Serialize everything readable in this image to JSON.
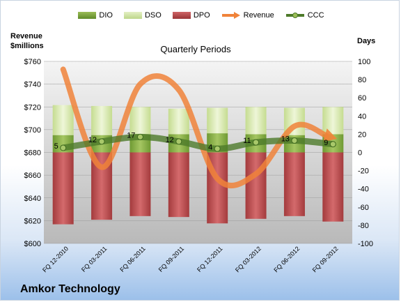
{
  "company": "Amkor Technology",
  "chart_data": {
    "type": "bar",
    "title": "Quarterly Periods",
    "y_left_label_line1": "Revenue",
    "y_left_label_line2": "$millions",
    "y_right_label": "Days",
    "y_left_range": [
      600,
      760
    ],
    "y_left_ticks": [
      "$600",
      "$620",
      "$640",
      "$660",
      "$680",
      "$700",
      "$720",
      "$740",
      "$760"
    ],
    "y_right_range": [
      -100,
      100
    ],
    "y_right_ticks": [
      "-100",
      "-80",
      "-60",
      "-40",
      "-20",
      "0",
      "20",
      "40",
      "60",
      "80",
      "100"
    ],
    "categories": [
      "FQ 12-2010",
      "FQ 03-2011",
      "FQ 06-2011",
      "FQ 09-2011",
      "FQ 12-2011",
      "FQ 03-2012",
      "FQ 06-2012",
      "FQ 09-2012"
    ],
    "legend": [
      "DIO",
      "DSO",
      "DPO",
      "Revenue",
      "CCC"
    ],
    "series": [
      {
        "name": "DIO",
        "axis": "days",
        "values": [
          19,
          19,
          20,
          20,
          21,
          20,
          19,
          20
        ]
      },
      {
        "name": "DSO",
        "axis": "days",
        "values": [
          33,
          32,
          30,
          28,
          28,
          30,
          30,
          30
        ]
      },
      {
        "name": "DPO",
        "axis": "days",
        "values": [
          -79,
          -74,
          -70,
          -71,
          -78,
          -73,
          -70,
          -76
        ]
      },
      {
        "name": "Revenue",
        "axis": "revenue",
        "values": [
          753,
          667,
          740,
          735,
          657,
          661,
          703,
          693
        ]
      },
      {
        "name": "CCC",
        "axis": "days",
        "values": [
          5,
          12,
          17,
          12,
          4,
          11,
          13,
          9
        ]
      }
    ],
    "ccc_labels": [
      "5",
      "12",
      "17",
      "12",
      "4",
      "11",
      "13",
      "9"
    ],
    "colors": {
      "DIO": "#7aa03a",
      "DSO": "#d3e6a4",
      "DPO": "#b5494b",
      "Revenue": "#f0833a",
      "CCC": "#4d7a2a"
    },
    "grid": true
  }
}
